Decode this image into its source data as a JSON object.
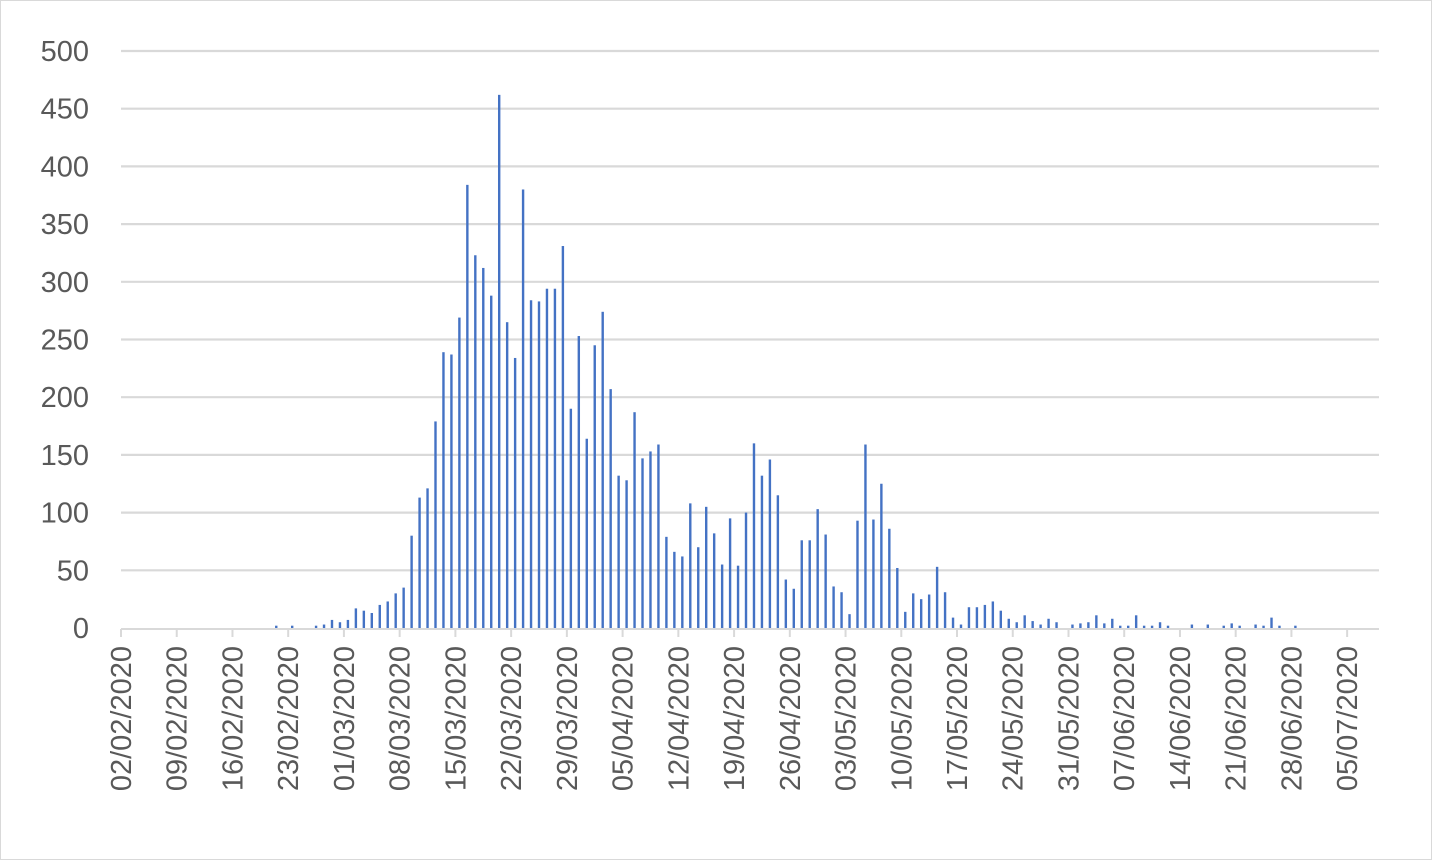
{
  "chart_data": {
    "type": "bar",
    "title": "",
    "xlabel": "",
    "ylabel": "",
    "ylim": [
      0,
      500
    ],
    "y_ticks": [
      0,
      50,
      100,
      150,
      200,
      250,
      300,
      350,
      400,
      450,
      500
    ],
    "grid": "horizontal",
    "legend": "none",
    "x_start_date": "02/02/2020",
    "x_end_date": "05/07/2020",
    "x_tick_labels": [
      "02/02/2020",
      "09/02/2020",
      "16/02/2020",
      "23/02/2020",
      "01/03/2020",
      "08/03/2020",
      "15/03/2020",
      "22/03/2020",
      "29/03/2020",
      "05/04/2020",
      "12/04/2020",
      "19/04/2020",
      "26/04/2020",
      "03/05/2020",
      "10/05/2020",
      "17/05/2020",
      "24/05/2020",
      "31/05/2020",
      "07/06/2020",
      "14/06/2020",
      "21/06/2020",
      "28/06/2020",
      "05/07/2020"
    ],
    "series": [
      {
        "color": "#4472c4",
        "points": [
          [
            "21/02/2020",
            2
          ],
          [
            "23/02/2020",
            2
          ],
          [
            "26/02/2020",
            2
          ],
          [
            "27/02/2020",
            3
          ],
          [
            "28/02/2020",
            7
          ],
          [
            "29/02/2020",
            5
          ],
          [
            "01/03/2020",
            7
          ],
          [
            "02/03/2020",
            17
          ],
          [
            "03/03/2020",
            15
          ],
          [
            "04/03/2020",
            13
          ],
          [
            "05/03/2020",
            20
          ],
          [
            "06/03/2020",
            23
          ],
          [
            "07/03/2020",
            30
          ],
          [
            "08/03/2020",
            35
          ],
          [
            "09/03/2020",
            80
          ],
          [
            "10/03/2020",
            113
          ],
          [
            "11/03/2020",
            121
          ],
          [
            "12/03/2020",
            179
          ],
          [
            "13/03/2020",
            239
          ],
          [
            "14/03/2020",
            237
          ],
          [
            "15/03/2020",
            269
          ],
          [
            "16/03/2020",
            384
          ],
          [
            "17/03/2020",
            323
          ],
          [
            "18/03/2020",
            312
          ],
          [
            "19/03/2020",
            288
          ],
          [
            "20/03/2020",
            462
          ],
          [
            "21/03/2020",
            265
          ],
          [
            "22/03/2020",
            234
          ],
          [
            "23/03/2020",
            380
          ],
          [
            "24/03/2020",
            284
          ],
          [
            "25/03/2020",
            283
          ],
          [
            "26/03/2020",
            294
          ],
          [
            "27/03/2020",
            294
          ],
          [
            "28/03/2020",
            331
          ],
          [
            "29/03/2020",
            190
          ],
          [
            "30/03/2020",
            253
          ],
          [
            "31/03/2020",
            164
          ],
          [
            "01/04/2020",
            245
          ],
          [
            "02/04/2020",
            274
          ],
          [
            "03/04/2020",
            207
          ],
          [
            "04/04/2020",
            132
          ],
          [
            "05/04/2020",
            128
          ],
          [
            "06/04/2020",
            187
          ],
          [
            "07/04/2020",
            147
          ],
          [
            "08/04/2020",
            153
          ],
          [
            "09/04/2020",
            159
          ],
          [
            "10/04/2020",
            79
          ],
          [
            "11/04/2020",
            66
          ],
          [
            "12/04/2020",
            62
          ],
          [
            "13/04/2020",
            108
          ],
          [
            "14/04/2020",
            70
          ],
          [
            "15/04/2020",
            105
          ],
          [
            "16/04/2020",
            82
          ],
          [
            "17/04/2020",
            55
          ],
          [
            "18/04/2020",
            95
          ],
          [
            "19/04/2020",
            54
          ],
          [
            "20/04/2020",
            100
          ],
          [
            "21/04/2020",
            160
          ],
          [
            "22/04/2020",
            132
          ],
          [
            "23/04/2020",
            146
          ],
          [
            "24/04/2020",
            115
          ],
          [
            "25/04/2020",
            42
          ],
          [
            "26/04/2020",
            34
          ],
          [
            "27/04/2020",
            76
          ],
          [
            "28/04/2020",
            76
          ],
          [
            "29/04/2020",
            103
          ],
          [
            "30/04/2020",
            81
          ],
          [
            "01/05/2020",
            36
          ],
          [
            "02/05/2020",
            31
          ],
          [
            "03/05/2020",
            12
          ],
          [
            "04/05/2020",
            93
          ],
          [
            "05/05/2020",
            159
          ],
          [
            "06/05/2020",
            94
          ],
          [
            "07/05/2020",
            125
          ],
          [
            "08/05/2020",
            86
          ],
          [
            "09/05/2020",
            52
          ],
          [
            "10/05/2020",
            14
          ],
          [
            "11/05/2020",
            30
          ],
          [
            "12/05/2020",
            25
          ],
          [
            "13/05/2020",
            29
          ],
          [
            "14/05/2020",
            53
          ],
          [
            "15/05/2020",
            31
          ],
          [
            "16/05/2020",
            9
          ],
          [
            "17/05/2020",
            3
          ],
          [
            "18/05/2020",
            18
          ],
          [
            "19/05/2020",
            18
          ],
          [
            "20/05/2020",
            20
          ],
          [
            "21/05/2020",
            23
          ],
          [
            "22/05/2020",
            15
          ],
          [
            "23/05/2020",
            8
          ],
          [
            "24/05/2020",
            5
          ],
          [
            "25/05/2020",
            11
          ],
          [
            "26/05/2020",
            6
          ],
          [
            "27/05/2020",
            3
          ],
          [
            "28/05/2020",
            8
          ],
          [
            "29/05/2020",
            5
          ],
          [
            "31/05/2020",
            3
          ],
          [
            "01/06/2020",
            4
          ],
          [
            "02/06/2020",
            5
          ],
          [
            "03/06/2020",
            11
          ],
          [
            "04/06/2020",
            4
          ],
          [
            "05/06/2020",
            8
          ],
          [
            "06/06/2020",
            2
          ],
          [
            "07/06/2020",
            2
          ],
          [
            "08/06/2020",
            11
          ],
          [
            "09/06/2020",
            2
          ],
          [
            "10/06/2020",
            2
          ],
          [
            "11/06/2020",
            5
          ],
          [
            "12/06/2020",
            2
          ],
          [
            "15/06/2020",
            3
          ],
          [
            "17/06/2020",
            3
          ],
          [
            "19/06/2020",
            2
          ],
          [
            "20/06/2020",
            4
          ],
          [
            "21/06/2020",
            2
          ],
          [
            "23/06/2020",
            3
          ],
          [
            "24/06/2020",
            2
          ],
          [
            "25/06/2020",
            9
          ],
          [
            "26/06/2020",
            2
          ],
          [
            "28/06/2020",
            2
          ]
        ]
      }
    ]
  }
}
